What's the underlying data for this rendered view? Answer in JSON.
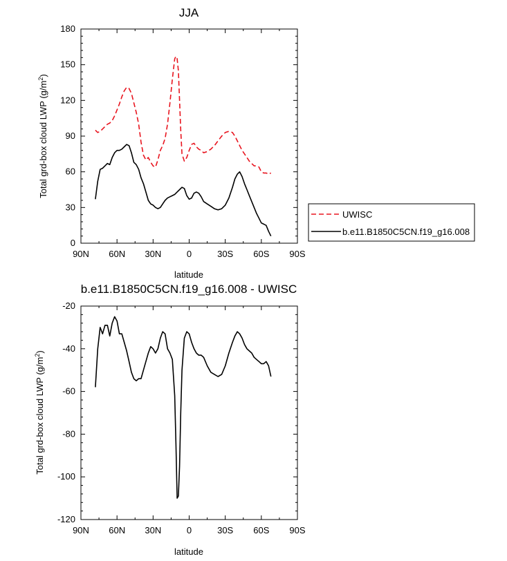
{
  "chart_data": [
    {
      "type": "line",
      "title": "JJA",
      "xlabel": "latitude",
      "ylabel": "Total grd-box cloud LWP (g/m",
      "ylabel_sup": "2",
      "ylabel_end": ")",
      "xlim": [
        90,
        -90
      ],
      "ylim": [
        0,
        180
      ],
      "xticks": [
        90,
        60,
        30,
        0,
        -30,
        -60,
        -90
      ],
      "xtick_labels": [
        "90N",
        "60N",
        "30N",
        "0",
        "30S",
        "60S",
        "90S"
      ],
      "yticks": [
        0,
        30,
        60,
        90,
        120,
        150,
        180
      ],
      "ytick_labels": [
        "0",
        "30",
        "60",
        "90",
        "120",
        "150",
        "180"
      ],
      "legend": "right-outside",
      "series": [
        {
          "name": "UWISC",
          "color": "#e8141e",
          "dash": "dashed",
          "x": [
            78,
            76,
            74,
            72,
            70,
            68,
            66,
            64,
            62,
            60,
            58,
            56,
            54,
            52,
            50,
            48,
            46,
            44,
            42,
            40,
            38,
            36,
            34,
            32,
            30,
            28,
            26,
            24,
            22,
            20,
            18,
            16,
            14,
            12,
            11,
            10,
            9,
            8,
            7,
            6,
            4,
            2,
            0,
            -2,
            -4,
            -6,
            -8,
            -10,
            -12,
            -15,
            -18,
            -21,
            -24,
            -27,
            -30,
            -33,
            -36,
            -38,
            -40,
            -42,
            -44,
            -46,
            -48,
            -50,
            -52,
            -54,
            -56,
            -58,
            -60,
            -62,
            -64,
            -66,
            -68
          ],
          "y": [
            95,
            93,
            94,
            96,
            98,
            100,
            101,
            103,
            107,
            112,
            117,
            123,
            128,
            131,
            130,
            126,
            118,
            110,
            100,
            85,
            74,
            70,
            72,
            68,
            65,
            64,
            70,
            78,
            82,
            88,
            100,
            118,
            138,
            155,
            157,
            155,
            145,
            120,
            95,
            75,
            69,
            72,
            78,
            83,
            84,
            81,
            79,
            78,
            76,
            77,
            79,
            82,
            86,
            90,
            93,
            94,
            93,
            90,
            86,
            82,
            78,
            75,
            72,
            69,
            67,
            65,
            65,
            64,
            60,
            59,
            59,
            58,
            59
          ]
        },
        {
          "name": "b.e11.B1850C5CN.f19_g16.008",
          "color": "#000000",
          "dash": "solid",
          "x": [
            78,
            76,
            74,
            72,
            70,
            68,
            66,
            64,
            62,
            60,
            58,
            56,
            54,
            52,
            50,
            48,
            46,
            44,
            42,
            40,
            38,
            36,
            34,
            32,
            30,
            28,
            26,
            24,
            22,
            20,
            18,
            16,
            14,
            12,
            10,
            8,
            6,
            4,
            2,
            0,
            -2,
            -4,
            -6,
            -8,
            -10,
            -12,
            -15,
            -18,
            -21,
            -24,
            -27,
            -30,
            -33,
            -36,
            -38,
            -40,
            -42,
            -44,
            -46,
            -48,
            -50,
            -52,
            -54,
            -56,
            -58,
            -60,
            -62,
            -64,
            -66,
            -68
          ],
          "y": [
            37,
            52,
            62,
            63,
            65,
            67,
            66,
            72,
            76,
            78,
            78,
            79,
            81,
            83,
            82,
            76,
            68,
            66,
            62,
            55,
            50,
            43,
            36,
            33,
            32,
            30,
            29,
            30,
            33,
            36,
            38,
            39,
            40,
            41,
            43,
            45,
            47,
            46,
            40,
            37,
            38,
            42,
            43,
            42,
            39,
            35,
            33,
            31,
            29,
            28,
            29,
            32,
            38,
            47,
            54,
            58,
            60,
            56,
            50,
            45,
            40,
            35,
            30,
            25,
            21,
            17,
            16,
            15,
            10,
            6
          ]
        }
      ]
    },
    {
      "type": "line",
      "title": "b.e11.B1850C5CN.f19_g16.008 - UWISC",
      "xlabel": "latitude",
      "ylabel": "Total grd-box cloud LWP (g/m",
      "ylabel_sup": "2",
      "ylabel_end": ")",
      "xlim": [
        90,
        -90
      ],
      "ylim": [
        -120,
        -20
      ],
      "xticks": [
        90,
        60,
        30,
        0,
        -30,
        -60,
        -90
      ],
      "xtick_labels": [
        "90N",
        "60N",
        "30N",
        "0",
        "30S",
        "60S",
        "90S"
      ],
      "yticks": [
        -120,
        -100,
        -80,
        -60,
        -40,
        -20
      ],
      "ytick_labels": [
        "-120",
        "-100",
        "-80",
        "-60",
        "-40",
        "-20"
      ],
      "series": [
        {
          "name": "",
          "color": "#000000",
          "dash": "solid",
          "x": [
            78,
            76,
            74,
            72,
            70,
            68,
            66,
            64,
            62,
            60,
            58,
            56,
            54,
            52,
            50,
            48,
            46,
            44,
            42,
            40,
            38,
            36,
            34,
            32,
            30,
            28,
            26,
            24,
            22,
            20,
            18,
            16,
            14,
            12,
            11,
            10,
            9,
            8,
            7,
            6,
            4,
            2,
            0,
            -2,
            -4,
            -6,
            -8,
            -10,
            -12,
            -15,
            -18,
            -21,
            -24,
            -27,
            -30,
            -33,
            -36,
            -38,
            -40,
            -42,
            -44,
            -46,
            -48,
            -50,
            -52,
            -54,
            -56,
            -58,
            -60,
            -62,
            -64,
            -66,
            -68
          ],
          "y": [
            -58,
            -40,
            -30,
            -33,
            -29,
            -29,
            -34,
            -28,
            -25,
            -27,
            -33,
            -33,
            -37,
            -41,
            -46,
            -51,
            -54,
            -55,
            -54,
            -54,
            -50,
            -46,
            -42,
            -39,
            -40,
            -42,
            -40,
            -35,
            -32,
            -33,
            -40,
            -42,
            -45,
            -62,
            -85,
            -110,
            -109,
            -95,
            -70,
            -50,
            -35,
            -32,
            -33,
            -37,
            -40,
            -42,
            -43,
            -43,
            -44,
            -48,
            -51,
            -52,
            -53,
            -52,
            -48,
            -42,
            -37,
            -34,
            -32,
            -33,
            -35,
            -38,
            -40,
            -41,
            -42,
            -44,
            -45,
            -46,
            -47,
            -47,
            -46,
            -48,
            -53
          ]
        }
      ]
    }
  ]
}
